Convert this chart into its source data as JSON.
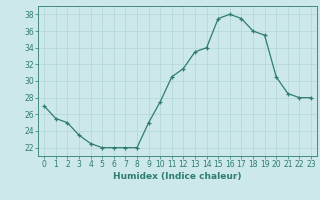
{
  "x": [
    0,
    1,
    2,
    3,
    4,
    5,
    6,
    7,
    8,
    9,
    10,
    11,
    12,
    13,
    14,
    15,
    16,
    17,
    18,
    19,
    20,
    21,
    22,
    23
  ],
  "y": [
    27,
    25.5,
    25,
    23.5,
    22.5,
    22,
    22,
    22,
    22,
    25,
    27.5,
    30.5,
    31.5,
    33.5,
    34,
    37.5,
    38,
    37.5,
    36,
    35.5,
    30.5,
    28.5,
    28,
    28
  ],
  "line_color": "#2e7d6e",
  "marker": "+",
  "bg_color": "#cce8e8",
  "grid_color": "#b8d8d8",
  "axis_color": "#2e7d6e",
  "xlabel": "Humidex (Indice chaleur)",
  "ylim": [
    21,
    39
  ],
  "xlim": [
    -0.5,
    23.5
  ],
  "yticks": [
    22,
    24,
    26,
    28,
    30,
    32,
    34,
    36,
    38
  ],
  "xticks": [
    0,
    1,
    2,
    3,
    4,
    5,
    6,
    7,
    8,
    9,
    10,
    11,
    12,
    13,
    14,
    15,
    16,
    17,
    18,
    19,
    20,
    21,
    22,
    23
  ],
  "label_fontsize": 6.5,
  "tick_fontsize": 5.5
}
